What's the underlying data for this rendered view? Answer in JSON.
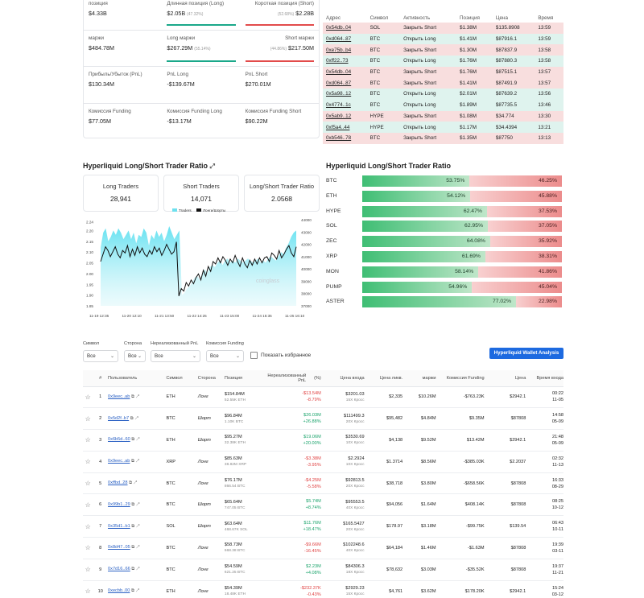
{
  "stats": {
    "r1": {
      "a_label": "позиция",
      "a_value": "$4.33B",
      "b_label": "Длинная позиция (Long)",
      "b_value": "$2.05B",
      "b_pct": "(47.32%)",
      "c_label": "Короткая позиция (Short)",
      "c_value": "$2.28B",
      "c_pct": "(52.68%)"
    },
    "r2": {
      "a_label": "маржи",
      "a_value": "$484.78M",
      "b_label": "Long маржи",
      "b_value": "$267.29M",
      "b_pct": "(55.14%)",
      "c_label": "Short маржи",
      "c_value": "$217.50M",
      "c_pct": "(44.86%)"
    },
    "r3": {
      "a_label": "Прибыль/Убыток (PnL)",
      "a_value": "$130.34M",
      "b_label": "PnL Long",
      "b_value": "-$139.67M",
      "c_label": "PnL Short",
      "c_value": "$270.01M"
    },
    "r4": {
      "a_label": "Комиссия Funding",
      "a_value": "$77.05M",
      "b_label": "Комиссия Funding Long",
      "b_value": "-$13.17M",
      "c_label": "Комиссия Funding Short",
      "c_value": "$90.22M"
    }
  },
  "whales": {
    "headers": [
      "Адрес",
      "Символ",
      "Активность",
      "Позиция",
      "Цена",
      "Время"
    ],
    "rows": [
      {
        "addr": "0x54db..04",
        "sym": "SOL",
        "act": "Закрыть Short",
        "pos": "$1.38M",
        "price": "$135.8908",
        "time": "13:59",
        "side": "S"
      },
      {
        "addr": "0xd064..87",
        "sym": "BTC",
        "act": "Открыть Long",
        "pos": "$1.41M",
        "price": "$87916.1",
        "time": "13:59",
        "side": "L"
      },
      {
        "addr": "0xe75b..b4",
        "sym": "BTC",
        "act": "Закрыть Short",
        "pos": "$1.30M",
        "price": "$87837.9",
        "time": "13:58",
        "side": "S"
      },
      {
        "addr": "0xff22..73",
        "sym": "BTC",
        "act": "Открыть Long",
        "pos": "$1.76M",
        "price": "$87880.3",
        "time": "13:58",
        "side": "L"
      },
      {
        "addr": "0x54db..04",
        "sym": "BTC",
        "act": "Закрыть Short",
        "pos": "$1.76M",
        "price": "$87515.1",
        "time": "13:57",
        "side": "S"
      },
      {
        "addr": "0xd064..87",
        "sym": "BTC",
        "act": "Закрыть Short",
        "pos": "$1.41M",
        "price": "$87491.9",
        "time": "13:57",
        "side": "S"
      },
      {
        "addr": "0x5a98..12",
        "sym": "BTC",
        "act": "Открыть Long",
        "pos": "$2.01M",
        "price": "$87639.2",
        "time": "13:56",
        "side": "L"
      },
      {
        "addr": "0x4774..1c",
        "sym": "BTC",
        "act": "Открыть Long",
        "pos": "$1.89M",
        "price": "$87735.5",
        "time": "13:46",
        "side": "L"
      },
      {
        "addr": "0x5ab9..12",
        "sym": "HYPE",
        "act": "Закрыть Short",
        "pos": "$1.08M",
        "price": "$34.774",
        "time": "13:30",
        "side": "S"
      },
      {
        "addr": "0xf5a4..44",
        "sym": "HYPE",
        "act": "Открыть Long",
        "pos": "$1.17M",
        "price": "$34.4394",
        "time": "13:21",
        "side": "L"
      },
      {
        "addr": "0xb546..78",
        "sym": "BTC",
        "act": "Закрыть Short",
        "pos": "$1.35M",
        "price": "$87750",
        "time": "13:13",
        "side": "S"
      }
    ]
  },
  "ratio_section": {
    "title": "Hyperliquid Long/Short Trader Ratio",
    "cards": [
      {
        "label": "Long Traders",
        "value": "28,941"
      },
      {
        "label": "Short Traders",
        "value": "14,071"
      },
      {
        "label": "Long/Short Trader Ratio",
        "value": "2.0568"
      }
    ],
    "watermark": "coinglass"
  },
  "coin_ratio": {
    "title": "Hyperliquid Long/Short Trader Ratio",
    "rows": [
      {
        "sym": "BTC",
        "long": "53.75%",
        "short": "46.25%",
        "lf": 0.5375
      },
      {
        "sym": "ETH",
        "long": "54.12%",
        "short": "45.88%",
        "lf": 0.5412
      },
      {
        "sym": "HYPE",
        "long": "62.47%",
        "short": "37.53%",
        "lf": 0.6247
      },
      {
        "sym": "SOL",
        "long": "62.95%",
        "short": "37.05%",
        "lf": 0.6295
      },
      {
        "sym": "ZEC",
        "long": "64.08%",
        "short": "35.92%",
        "lf": 0.6408
      },
      {
        "sym": "XRP",
        "long": "61.69%",
        "short": "38.31%",
        "lf": 0.6169
      },
      {
        "sym": "MON",
        "long": "58.14%",
        "short": "41.86%",
        "lf": 0.5814
      },
      {
        "sym": "PUMP",
        "long": "54.96%",
        "short": "45.04%",
        "lf": 0.5496
      },
      {
        "sym": "ASTER",
        "long": "77.02%",
        "short": "22.98%",
        "lf": 0.7702
      }
    ]
  },
  "chart_data": {
    "type": "line",
    "legend": [
      "Traders",
      "Лонги/Шорты"
    ],
    "x_ticks": [
      "11-19 12:35",
      "11-20 12:10",
      "11-21 13:50",
      "11-22 14:25",
      "11-23 15:00",
      "11-24 15:35",
      "11-25 16:10"
    ],
    "y_left_ticks": [
      "2.24",
      "2.20",
      "2.15",
      "2.10",
      "2.05",
      "2.00",
      "1.95",
      "1.90",
      "1.85"
    ],
    "y_right_ticks": [
      "44000",
      "43000",
      "42000",
      "41000",
      "40000",
      "39000",
      "38000",
      "37000"
    ],
    "y_left_range": [
      1.85,
      2.25
    ],
    "y_right_range": [
      37000,
      44000
    ],
    "traders_area": [
      2.12,
      2.19,
      2.21,
      2.15,
      2.17,
      2.2,
      2.18,
      2.21,
      2.19,
      2.16,
      2.18,
      2.2,
      2.16,
      2.19,
      2.14,
      2.18,
      2.17,
      2.21,
      2.19,
      2.13,
      2.18,
      2.16,
      2.2,
      2.17,
      2.19,
      2.15,
      2.18,
      2.22,
      2.19,
      2.16,
      2.18,
      2.2,
      1.9,
      1.91,
      1.93,
      1.94,
      1.96,
      1.98,
      1.99,
      1.97,
      2.0,
      2.02,
      2.0,
      2.03,
      2.04,
      2.03,
      2.05,
      2.06,
      2.04,
      2.06,
      2.07,
      2.05,
      2.06,
      2.05,
      2.07,
      2.06,
      2.05,
      2.06,
      2.07,
      2.06,
      2.05,
      2.06,
      2.07,
      2.05,
      2.06,
      2.05,
      2.07,
      2.08,
      2.07,
      2.06,
      2.08,
      2.1,
      2.09,
      2.12,
      2.14,
      2.17,
      2.19,
      2.2
    ],
    "ratio_line": [
      40600,
      41200,
      41800,
      41500,
      41000,
      41400,
      41800,
      41200,
      40900,
      41500,
      41300,
      41900,
      41000,
      41600,
      41100,
      41800,
      41300,
      41700,
      41200,
      41000,
      41500,
      41200,
      41800,
      41400,
      41700,
      41100,
      41500,
      42000,
      41600,
      41200,
      41400,
      42200,
      37800,
      38400,
      38200,
      38900,
      38600,
      39100,
      38800,
      39300,
      39600,
      39100,
      39900,
      39400,
      40200,
      39800,
      40600,
      40400,
      40900,
      40500,
      41000,
      40700,
      40300,
      40800,
      40500,
      41100,
      40600,
      40200,
      40900,
      40400,
      40100,
      40700,
      40300,
      40800,
      40400,
      40900,
      40500,
      40900,
      41000,
      40600,
      41300,
      41100,
      40800,
      41500,
      40900,
      41200,
      41600,
      41900,
      41300,
      41000,
      41800
    ]
  },
  "filters": {
    "labels": [
      "Символ",
      "Сторона",
      "Нереализованный PnL",
      "Комиссия Funding"
    ],
    "values": [
      "Все",
      "Все",
      "Все",
      "Все"
    ],
    "favorites": "Показать избранное",
    "analysis_btn": "Hyperliquid Wallet Analysis"
  },
  "main": {
    "headers": [
      "#",
      "Пользователь",
      "Символ",
      "Сторона",
      "Позиция",
      "Нереализованный PnL",
      "(%)",
      "Цена входа",
      "Цена ликв.",
      "маржи",
      "Комиссия Funding",
      "Цена",
      "Время входа"
    ],
    "rows": [
      {
        "n": "1",
        "user": "0x9eec..ab",
        "sym": "ETH",
        "side": "Лонг",
        "sd": "L",
        "pos": "$154.84M",
        "posq": "52.55K ETH",
        "pnl": "-$13.54M",
        "pnlp": "-8.79%",
        "pc": "neg",
        "entry": "$3201.03",
        "lev": "15X Кросс",
        "liq": "$2,335",
        "margin": "$10.26M",
        "fund": "-$763.23K",
        "fc": "neg",
        "price": "$2942.1",
        "t1": "00:22",
        "t2": "11-05"
      },
      {
        "n": "2",
        "user": "0x5d2f..b7",
        "sym": "BTC",
        "side": "Шорт",
        "sd": "S",
        "pos": "$96.84M",
        "posq": "1.10K BTC",
        "pnl": "$26.03M",
        "pnlp": "+26.88%",
        "pc": "pos",
        "entry": "$111499.3",
        "lev": "20X Кросс",
        "liq": "$95,482",
        "margin": "$4.84M",
        "fund": "$9.35M",
        "fc": "pos",
        "price": "$87808",
        "t1": "14:58",
        "t2": "05-09"
      },
      {
        "n": "3",
        "user": "0x6b5d..60",
        "sym": "ETH",
        "side": "Шорт",
        "sd": "S",
        "pos": "$95.27M",
        "posq": "32.38K ETH",
        "pnl": "$19.06M",
        "pnlp": "+20.00%",
        "pc": "pos",
        "entry": "$3530.69",
        "lev": "10X Кросс",
        "liq": "$4,138",
        "margin": "$9.52M",
        "fund": "$13.42M",
        "fc": "pos",
        "price": "$2942.1",
        "t1": "21:48",
        "t2": "05-09"
      },
      {
        "n": "4",
        "user": "0x9eec..ab",
        "sym": "XRP",
        "side": "Лонг",
        "sd": "L",
        "pos": "$85.63M",
        "posq": "38.82M XRP",
        "pnl": "-$3.38M",
        "pnlp": "-3.95%",
        "pc": "neg",
        "entry": "$2.2924",
        "lev": "10X Кросс",
        "liq": "$1.3714",
        "margin": "$8.56M",
        "fund": "-$385.03K",
        "fc": "neg",
        "price": "$2.2037",
        "t1": "02:32",
        "t2": "11-13"
      },
      {
        "n": "5",
        "user": "0xffbd..28",
        "sym": "BTC",
        "side": "Лонг",
        "sd": "L",
        "pos": "$76.17M",
        "posq": "866.54 BTC",
        "pnl": "-$4.25M",
        "pnlp": "-5.58%",
        "pc": "neg",
        "entry": "$92813.5",
        "lev": "20X Кросс",
        "liq": "$38,718",
        "margin": "$3.80M",
        "fund": "-$658.56K",
        "fc": "neg",
        "price": "$87808",
        "t1": "16:33",
        "t2": "08-29"
      },
      {
        "n": "6",
        "user": "0x99b1..29",
        "sym": "BTC",
        "side": "Шорт",
        "sd": "S",
        "pos": "$65.64M",
        "posq": "747.05 BTC",
        "pnl": "$5.74M",
        "pnlp": "+8.74%",
        "pc": "pos",
        "entry": "$95553.5",
        "lev": "40X Кросс",
        "liq": "$94,056",
        "margin": "$1.64M",
        "fund": "$408.14K",
        "fc": "pos",
        "price": "$87808",
        "t1": "08:25",
        "t2": "10-12"
      },
      {
        "n": "7",
        "user": "0x35d1..b1",
        "sym": "SOL",
        "side": "Шорт",
        "sd": "S",
        "pos": "$63.64M",
        "posq": "468.67K SOL",
        "pnl": "$11.76M",
        "pnlp": "+18.47%",
        "pc": "pos",
        "entry": "$165.5427",
        "lev": "20X Кросс",
        "liq": "$178.97",
        "margin": "$3.18M",
        "fund": "-$99.75K",
        "fc": "neg",
        "price": "$139.54",
        "t1": "06:43",
        "t2": "10-11"
      },
      {
        "n": "8",
        "user": "0x8d47..05",
        "sym": "BTC",
        "side": "Лонг",
        "sd": "L",
        "pos": "$58.73M",
        "posq": "668.38 BTC",
        "pnl": "-$9.66M",
        "pnlp": "-16.45%",
        "pc": "neg",
        "entry": "$102248.6",
        "lev": "40X Кросс",
        "liq": "$64,184",
        "margin": "$1.46M",
        "fund": "-$1.63M",
        "fc": "neg",
        "price": "$87808",
        "t1": "19:39",
        "t2": "03-11"
      },
      {
        "n": "9",
        "user": "0x7d16..66",
        "sym": "BTC",
        "side": "Лонг",
        "sd": "L",
        "pos": "$54.59M",
        "posq": "621.25 BTC",
        "pnl": "$2.23M",
        "pnlp": "+4.08%",
        "pc": "pos",
        "entry": "$84306.3",
        "lev": "18X Кросс",
        "liq": "$78,632",
        "margin": "$3.03M",
        "fund": "-$35.52K",
        "fc": "neg",
        "price": "$87808",
        "t1": "19:37",
        "t2": "11-21"
      },
      {
        "n": "10",
        "user": "0xecbb..00",
        "sym": "ETH",
        "side": "Лонг",
        "sd": "L",
        "pos": "$54.39M",
        "posq": "18.48K ETH",
        "pnl": "-$232.37K",
        "pnlp": "-0.43%",
        "pc": "neg",
        "entry": "$2929.23",
        "lev": "15X Кросс",
        "liq": "$4,761",
        "margin": "$3.62M",
        "fund": "$178.20K",
        "fc": "pos",
        "price": "$2942.1",
        "t1": "15:24",
        "t2": "03-12"
      }
    ]
  }
}
